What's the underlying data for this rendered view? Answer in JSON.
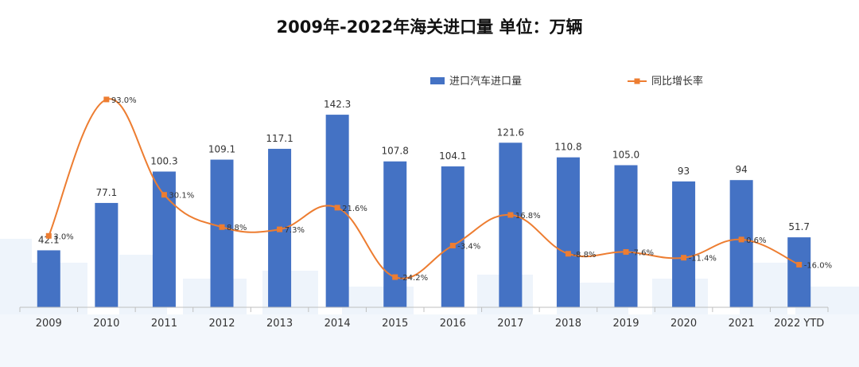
{
  "title": "2009年-2022年海关进口量 单位：万辆",
  "colors": {
    "bar": "#4472C4",
    "line": "#ED7D31",
    "axis": "#BFBFBF"
  },
  "chart_data": {
    "type": "bar",
    "title": "2009年-2022年海关进口量 单位：万辆",
    "categories": [
      "2009",
      "2010",
      "2011",
      "2012",
      "2013",
      "2014",
      "2015",
      "2016",
      "2017",
      "2018",
      "2019",
      "2020",
      "2021",
      "2022 YTD"
    ],
    "series": [
      {
        "name": "进口汽车进口量",
        "type": "bar",
        "values": [
          42.1,
          77.1,
          100.3,
          109.1,
          117.1,
          142.3,
          107.8,
          104.1,
          121.6,
          110.8,
          105.0,
          93,
          94,
          51.7
        ],
        "labels": [
          "42.1",
          "77.1",
          "100.3",
          "109.1",
          "117.1",
          "142.3",
          "107.8",
          "104.1",
          "121.6",
          "110.8",
          "105.0",
          "93",
          "94",
          "51.7"
        ]
      },
      {
        "name": "同比增长率",
        "type": "line",
        "values": [
          3.0,
          93.0,
          30.1,
          8.8,
          7.3,
          21.6,
          -24.2,
          -3.4,
          16.8,
          -8.8,
          -7.6,
          -11.4,
          0.6,
          -16.0
        ],
        "labels": [
          "3.0%",
          "93.0%",
          "30.1%",
          "8.8%",
          "7.3%",
          "21.6%",
          "-24.2%",
          "-3.4%",
          "16.8%",
          "-8.8%",
          "-7.6%",
          "-11.4%",
          "0.6%",
          "-16.0%"
        ]
      }
    ],
    "legend": [
      "进口汽车进口量",
      "同比增长率"
    ],
    "legend_position": "top-right",
    "ylim_bar": [
      0,
      160
    ],
    "ylim_line": [
      -40,
      100
    ],
    "grid": false
  }
}
